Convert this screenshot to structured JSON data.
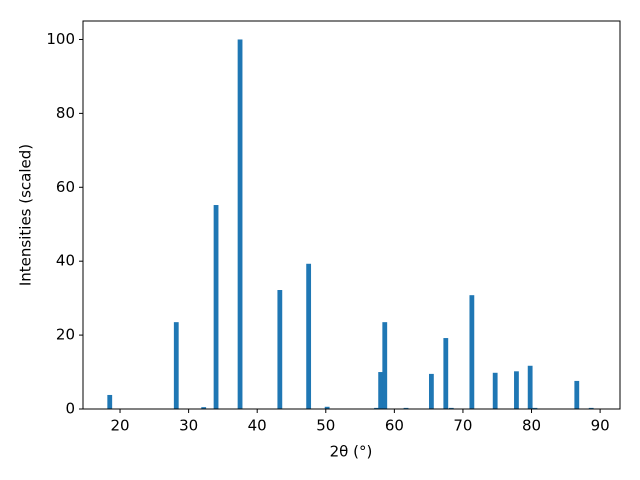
{
  "chart_data": {
    "type": "bar",
    "xlabel": "2θ (°)",
    "ylabel": "Intensities (scaled)",
    "x": [
      18.5,
      28.2,
      32.2,
      34.0,
      37.5,
      43.3,
      47.5,
      50.2,
      57.4,
      58.0,
      58.6,
      61.7,
      65.4,
      67.5,
      68.3,
      71.3,
      74.7,
      77.8,
      79.8,
      80.5,
      86.6,
      88.7
    ],
    "values": [
      3.8,
      23.5,
      0.5,
      55.2,
      100,
      32.2,
      39.3,
      0.6,
      0.3,
      10,
      23.5,
      0.3,
      9.5,
      19.2,
      0.3,
      30.8,
      9.8,
      10.2,
      11.7,
      0.3,
      7.6,
      0.3
    ],
    "bar_width": 0.7,
    "color": "#1f77b4",
    "xlim": [
      14.6,
      92.9
    ],
    "xticks": [
      20,
      30,
      40,
      50,
      60,
      70,
      80,
      90
    ],
    "ylim": [
      0,
      105
    ],
    "yticks": [
      0,
      20,
      40,
      60,
      80,
      100
    ],
    "grid": false
  }
}
